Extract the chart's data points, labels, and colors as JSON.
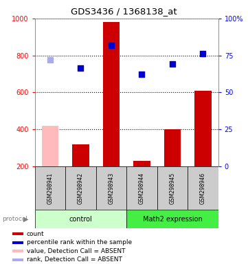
{
  "title": "GDS3436 / 1368138_at",
  "samples": [
    "GSM298941",
    "GSM298942",
    "GSM298943",
    "GSM298944",
    "GSM298945",
    "GSM298946"
  ],
  "bar_values": [
    420,
    320,
    980,
    230,
    400,
    610
  ],
  "bar_colors": [
    "#ffbbbb",
    "#cc0000",
    "#cc0000",
    "#cc0000",
    "#cc0000",
    "#cc0000"
  ],
  "dot_values": [
    775,
    730,
    855,
    700,
    755,
    810
  ],
  "dot_absent": [
    true,
    false,
    false,
    false,
    false,
    false
  ],
  "dot_color_present": "#0000cc",
  "dot_color_absent": "#aaaaee",
  "ylim_left": [
    200,
    1000
  ],
  "ylim_right": [
    0,
    100
  ],
  "y_ticks_left": [
    200,
    400,
    600,
    800,
    1000
  ],
  "y_ticks_right": [
    0,
    25,
    50,
    75,
    100
  ],
  "groups": [
    {
      "label": "control",
      "indices": [
        0,
        1,
        2
      ],
      "color": "#ccffcc"
    },
    {
      "label": "Math2 expression",
      "indices": [
        3,
        4,
        5
      ],
      "color": "#44ee44"
    }
  ],
  "protocol_label": "protocol",
  "legend_items": [
    {
      "color": "#cc0000",
      "label": "count"
    },
    {
      "color": "#0000cc",
      "label": "percentile rank within the sample"
    },
    {
      "color": "#ffbbbb",
      "label": "value, Detection Call = ABSENT"
    },
    {
      "color": "#aaaaee",
      "label": "rank, Detection Call = ABSENT"
    }
  ],
  "bg_color": "#cccccc",
  "bar_bottom": 200,
  "bar_width": 0.55
}
